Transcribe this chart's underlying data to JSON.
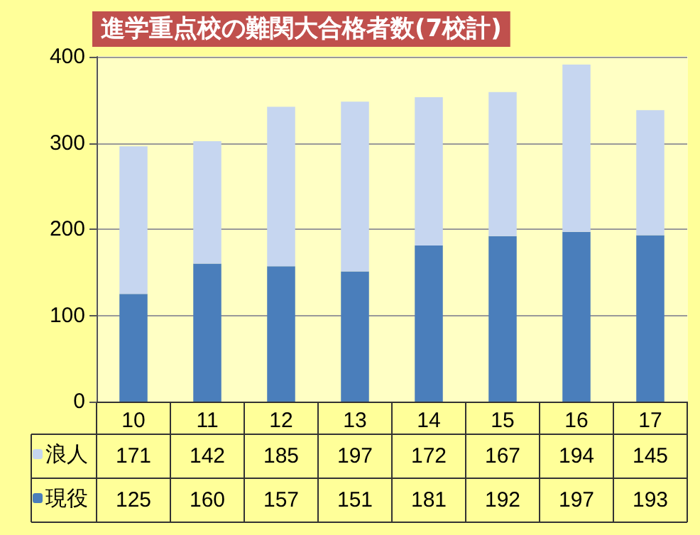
{
  "chart_data": {
    "type": "bar",
    "title": "進学重点校の難関大合格者数(7校計)",
    "categories": [
      "10",
      "11",
      "12",
      "13",
      "14",
      "15",
      "16",
      "17"
    ],
    "series": [
      {
        "name": "現役",
        "color": "#4a7ebb",
        "values": [
          125,
          160,
          157,
          151,
          181,
          192,
          197,
          193
        ]
      },
      {
        "name": "浪人",
        "color": "#c6d6f0",
        "values": [
          171,
          142,
          185,
          197,
          172,
          167,
          194,
          145
        ]
      }
    ],
    "stacked": true,
    "ylim": [
      0,
      400
    ],
    "yticks": [
      0,
      100,
      200,
      300,
      400
    ],
    "grid": "y",
    "legend": "bottom left",
    "data_labels": true
  }
}
